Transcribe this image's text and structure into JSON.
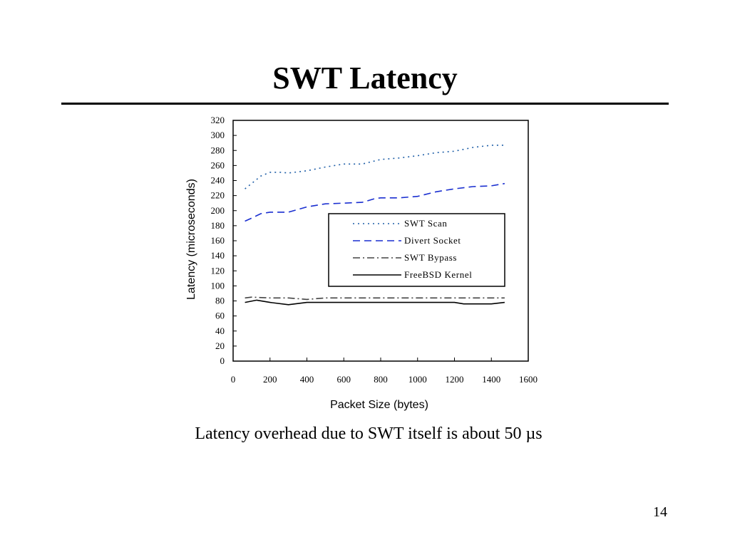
{
  "slide": {
    "title": "SWT Latency",
    "caption": "Latency overhead due to SWT itself is about 50 µs",
    "page_number": "14"
  },
  "chart_data": {
    "type": "line",
    "xlabel": "Packet Size (bytes)",
    "ylabel": "Latency (microseconds)",
    "xlim": [
      0,
      1600
    ],
    "ylim": [
      0,
      320
    ],
    "xticks": [
      "0",
      "200",
      "400",
      "600",
      "800",
      "1000",
      "1200",
      "1400",
      "1600"
    ],
    "yticks": [
      "0",
      "20",
      "40",
      "60",
      "80",
      "100",
      "120",
      "140",
      "160",
      "180",
      "200",
      "220",
      "240",
      "260",
      "280",
      "300",
      "320"
    ],
    "grid": false,
    "legend_position": "center-right",
    "series": [
      {
        "name": "SWT Scan",
        "color": "#1f5fa8",
        "dash": "dotted",
        "points": [
          [
            64,
            229
          ],
          [
            100,
            236
          ],
          [
            150,
            246
          ],
          [
            200,
            251
          ],
          [
            256,
            251
          ],
          [
            300,
            250
          ],
          [
            400,
            253
          ],
          [
            500,
            258
          ],
          [
            600,
            262
          ],
          [
            700,
            262
          ],
          [
            800,
            268
          ],
          [
            900,
            270
          ],
          [
            1000,
            273
          ],
          [
            1100,
            277
          ],
          [
            1200,
            279
          ],
          [
            1300,
            284
          ],
          [
            1400,
            287
          ],
          [
            1472,
            287
          ]
        ]
      },
      {
        "name": "Divert Socket",
        "color": "#1a2fd0",
        "dash": "dashed",
        "points": [
          [
            64,
            186
          ],
          [
            100,
            190
          ],
          [
            150,
            196
          ],
          [
            200,
            198
          ],
          [
            256,
            198
          ],
          [
            300,
            198
          ],
          [
            400,
            205
          ],
          [
            500,
            209
          ],
          [
            600,
            210
          ],
          [
            700,
            211
          ],
          [
            768,
            216
          ],
          [
            800,
            217
          ],
          [
            900,
            217
          ],
          [
            1000,
            219
          ],
          [
            1100,
            225
          ],
          [
            1200,
            229
          ],
          [
            1300,
            232
          ],
          [
            1400,
            233
          ],
          [
            1472,
            236
          ]
        ]
      },
      {
        "name": "SWT Bypass",
        "color": "#444444",
        "dash": "dashdot",
        "points": [
          [
            64,
            84
          ],
          [
            100,
            85
          ],
          [
            200,
            84
          ],
          [
            300,
            84
          ],
          [
            400,
            82
          ],
          [
            500,
            84
          ],
          [
            600,
            84
          ],
          [
            700,
            84
          ],
          [
            800,
            84
          ],
          [
            900,
            84
          ],
          [
            1000,
            84
          ],
          [
            1100,
            84
          ],
          [
            1200,
            84
          ],
          [
            1300,
            84
          ],
          [
            1400,
            84
          ],
          [
            1472,
            84
          ]
        ]
      },
      {
        "name": "FreeBSD Kernel",
        "color": "#000000",
        "dash": "solid",
        "points": [
          [
            64,
            78
          ],
          [
            128,
            81
          ],
          [
            200,
            78
          ],
          [
            300,
            75
          ],
          [
            400,
            78
          ],
          [
            500,
            78
          ],
          [
            600,
            78
          ],
          [
            700,
            78
          ],
          [
            800,
            78
          ],
          [
            900,
            78
          ],
          [
            1000,
            78
          ],
          [
            1100,
            78
          ],
          [
            1200,
            78
          ],
          [
            1250,
            76
          ],
          [
            1300,
            76
          ],
          [
            1400,
            76
          ],
          [
            1472,
            78
          ]
        ]
      }
    ]
  }
}
